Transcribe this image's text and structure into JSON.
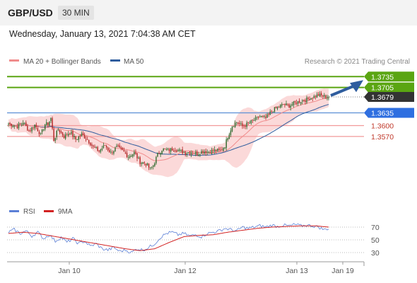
{
  "header": {
    "symbol": "GBP/USD",
    "timeframe": "30 MIN"
  },
  "datetime": "Wednesday, January 13, 2021 7:04:38 AM CET",
  "legend": {
    "ma20_bb": "MA 20 + Bollinger Bands",
    "ma50": "MA 50",
    "copyright": "Research © 2021 Trading Central"
  },
  "colors": {
    "ma20": "#f08c8c",
    "ma50": "#2f5d9e",
    "band_fill": "#fbd9d9",
    "up_candle": "#2d6a2d",
    "down_candle": "#b22222",
    "target_lines": "#5aa512",
    "pivot_line": "#5b8fd6",
    "support_lines": "#f29a9a",
    "arrow": "#2f5d9e",
    "current_price_bg": "#333333",
    "rsi": "#5b7fd6",
    "rsi_ma": "#d22222"
  },
  "chart_data": [
    {
      "type": "candlestick",
      "title": "GBP/USD 30 MIN",
      "ylim": [
        1.34,
        1.3755
      ],
      "x_ticks": [
        "Jan 10",
        "Jan 12",
        "Jan 13",
        "Jan 19"
      ],
      "levels": [
        {
          "label": "1.3735",
          "value": 1.3735,
          "kind": "target"
        },
        {
          "label": "1.3705",
          "value": 1.3705,
          "kind": "target"
        },
        {
          "label": "1.3679",
          "value": 1.3679,
          "kind": "current"
        },
        {
          "label": "1.3635",
          "value": 1.3635,
          "kind": "pivot"
        },
        {
          "label": "1.3600",
          "value": 1.36,
          "kind": "support"
        },
        {
          "label": "1.3570",
          "value": 1.357,
          "kind": "support"
        }
      ],
      "series": [
        {
          "name": "MA 20 + Bollinger Bands"
        },
        {
          "name": "MA 50"
        }
      ],
      "close_path": [
        [
          0,
          1.3605
        ],
        [
          6,
          1.3598
        ],
        [
          10,
          1.361
        ],
        [
          14,
          1.3585
        ],
        [
          18,
          1.3602
        ],
        [
          22,
          1.3575
        ],
        [
          25,
          1.3603
        ],
        [
          27,
          1.3605
        ],
        [
          29,
          1.362
        ],
        [
          31,
          1.356
        ],
        [
          34,
          1.359
        ],
        [
          38,
          1.357
        ],
        [
          42,
          1.3582
        ],
        [
          46,
          1.3562
        ],
        [
          50,
          1.3575
        ],
        [
          54,
          1.3562
        ],
        [
          58,
          1.354
        ],
        [
          62,
          1.353
        ],
        [
          66,
          1.3545
        ],
        [
          70,
          1.3525
        ],
        [
          74,
          1.354
        ],
        [
          78,
          1.353
        ],
        [
          82,
          1.3515
        ],
        [
          86,
          1.3525
        ],
        [
          90,
          1.35
        ],
        [
          94,
          1.3495
        ],
        [
          97,
          1.348
        ],
        [
          99,
          1.349
        ],
        [
          102,
          1.352
        ],
        [
          105,
          1.3535
        ],
        [
          109,
          1.3532
        ],
        [
          113,
          1.3536
        ],
        [
          117,
          1.353
        ],
        [
          121,
          1.3525
        ],
        [
          125,
          1.3528
        ],
        [
          129,
          1.3522
        ],
        [
          133,
          1.353
        ],
        [
          137,
          1.3528
        ],
        [
          141,
          1.3532
        ],
        [
          145,
          1.353
        ],
        [
          148,
          1.3545
        ],
        [
          150,
          1.357
        ],
        [
          153,
          1.36
        ],
        [
          156,
          1.361
        ],
        [
          160,
          1.3598
        ],
        [
          164,
          1.3605
        ],
        [
          168,
          1.3615
        ],
        [
          172,
          1.3625
        ],
        [
          176,
          1.362
        ],
        [
          180,
          1.364
        ],
        [
          184,
          1.365
        ],
        [
          188,
          1.3658
        ],
        [
          192,
          1.3655
        ],
        [
          196,
          1.3662
        ],
        [
          200,
          1.3668
        ],
        [
          204,
          1.3672
        ],
        [
          208,
          1.3678
        ],
        [
          212,
          1.3684
        ],
        [
          216,
          1.368
        ],
        [
          219,
          1.3679
        ]
      ]
    },
    {
      "type": "line",
      "title": "RSI",
      "series": [
        {
          "name": "RSI"
        },
        {
          "name": "9MA"
        }
      ],
      "y_ticks": [
        70,
        50,
        30
      ],
      "ylim": [
        20,
        80
      ],
      "x": "bar_index",
      "rsi_path": [
        [
          0,
          62
        ],
        [
          4,
          66
        ],
        [
          8,
          60
        ],
        [
          12,
          64
        ],
        [
          16,
          56
        ],
        [
          20,
          62
        ],
        [
          24,
          52
        ],
        [
          28,
          58
        ],
        [
          32,
          48
        ],
        [
          36,
          54
        ],
        [
          40,
          46
        ],
        [
          44,
          52
        ],
        [
          48,
          44
        ],
        [
          52,
          48
        ],
        [
          56,
          40
        ],
        [
          60,
          44
        ],
        [
          64,
          36
        ],
        [
          68,
          34
        ],
        [
          72,
          38
        ],
        [
          76,
          32
        ],
        [
          80,
          34
        ],
        [
          84,
          30
        ],
        [
          88,
          36
        ],
        [
          92,
          34
        ],
        [
          96,
          38
        ],
        [
          100,
          44
        ],
        [
          104,
          54
        ],
        [
          108,
          60
        ],
        [
          112,
          62
        ],
        [
          116,
          58
        ],
        [
          120,
          60
        ],
        [
          124,
          56
        ],
        [
          128,
          58
        ],
        [
          132,
          55
        ],
        [
          136,
          60
        ],
        [
          140,
          62
        ],
        [
          144,
          64
        ],
        [
          148,
          68
        ],
        [
          152,
          66
        ],
        [
          156,
          64
        ],
        [
          160,
          70
        ],
        [
          164,
          68
        ],
        [
          168,
          70
        ],
        [
          172,
          72
        ],
        [
          176,
          70
        ],
        [
          180,
          73
        ],
        [
          184,
          71
        ],
        [
          188,
          73
        ],
        [
          192,
          72
        ],
        [
          196,
          74
        ],
        [
          200,
          72
        ],
        [
          204,
          73
        ],
        [
          208,
          72
        ],
        [
          212,
          70
        ],
        [
          216,
          66
        ],
        [
          219,
          68
        ]
      ],
      "ma_path": [
        [
          0,
          60
        ],
        [
          10,
          62
        ],
        [
          20,
          60
        ],
        [
          30,
          56
        ],
        [
          40,
          52
        ],
        [
          50,
          48
        ],
        [
          60,
          44
        ],
        [
          70,
          40
        ],
        [
          80,
          36
        ],
        [
          90,
          33
        ],
        [
          100,
          36
        ],
        [
          110,
          46
        ],
        [
          120,
          55
        ],
        [
          130,
          57
        ],
        [
          140,
          58
        ],
        [
          150,
          62
        ],
        [
          160,
          65
        ],
        [
          170,
          68
        ],
        [
          180,
          70
        ],
        [
          190,
          71
        ],
        [
          200,
          72
        ],
        [
          210,
          72
        ],
        [
          219,
          70
        ]
      ]
    }
  ]
}
